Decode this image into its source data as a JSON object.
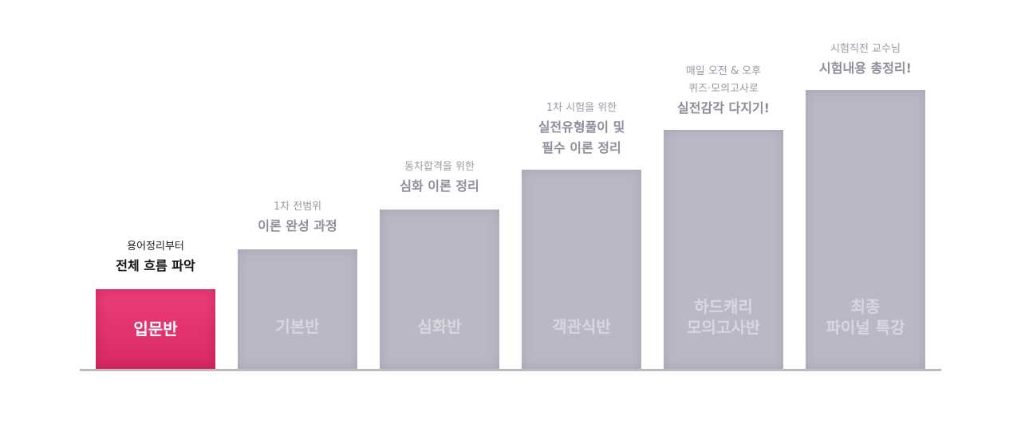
{
  "steps": [
    {
      "bar_label": "입문반",
      "caption_sub": "용어정리부터",
      "caption_main": "전체 흐름 파악",
      "active": true
    },
    {
      "bar_label": "기본반",
      "caption_sub": "1차 전범위",
      "caption_main": "이론 완성 과정",
      "active": false
    },
    {
      "bar_label": "심화반",
      "caption_sub": "동차합격을 위한",
      "caption_main": "심화 이론 정리",
      "active": false
    },
    {
      "bar_label": "객관식반",
      "caption_sub": "1차 시험을 위한",
      "caption_main": "실전유형풀이 및\n필수 이론 정리",
      "active": false
    },
    {
      "bar_label": "하드캐리\n모의고사반",
      "caption_sub": "매일 오전 & 오후\n퀴즈·모의고사로",
      "caption_main": "실전감각 다지기!",
      "active": false
    },
    {
      "bar_label": "최종\n파이널 특강",
      "caption_sub": "시험직전 교수님",
      "caption_main": "시험내용 총정리!",
      "active": false
    }
  ],
  "colors": {
    "active_bar": "#e03468",
    "inactive_bar": "#bab8c6",
    "baseline": "#bdbac6"
  }
}
